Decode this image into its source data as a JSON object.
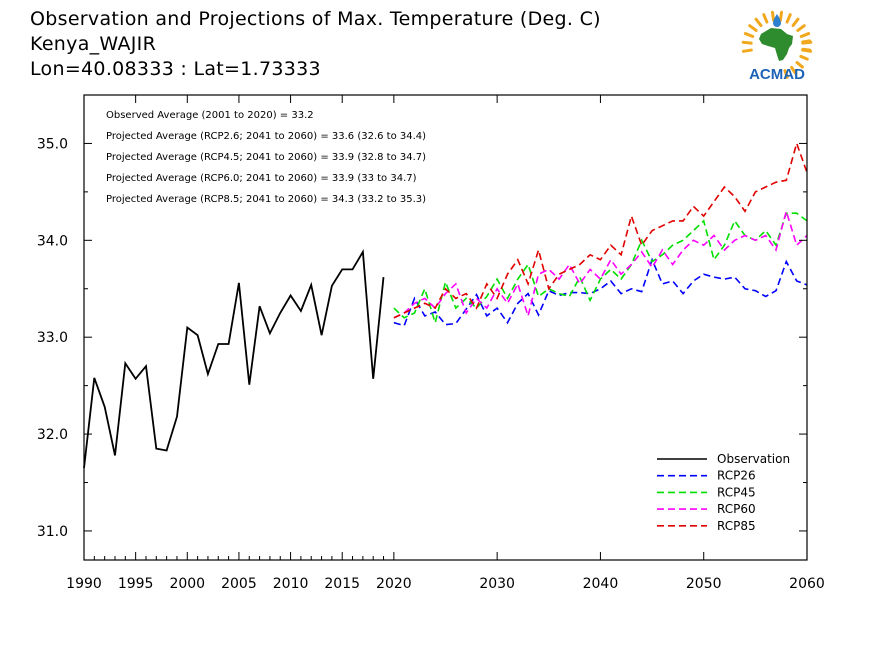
{
  "header": {
    "title": "Observation and Projections of Max. Temperature (Deg. C)",
    "station": "Kenya_WAJIR",
    "coords": "Lon=40.08333 : Lat=1.73333"
  },
  "logo": {
    "text": "ACMAD",
    "text_color": "#1c63b7",
    "africa_color": "#2e8b2e",
    "ray_color": "#f2a81d",
    "drop_color": "#2f7fd0"
  },
  "annotations": [
    "Observed Average (2001 to 2020) = 33.2",
    "Projected Average (RCP2.6; 2041 to 2060) = 33.6 (32.6 to 34.4)",
    "Projected Average (RCP4.5; 2041 to 2060) = 33.9 (32.8 to 34.7)",
    "Projected Average (RCP6.0; 2041 to 2060) = 33.9 (33 to 34.7)",
    "Projected Average (RCP8.5; 2041 to 2060) = 34.3 (33.2 to 35.3)"
  ],
  "chart_data": {
    "type": "line",
    "title": "Observation and Projections of Max. Temperature (Deg. C)",
    "xlabel": "",
    "ylabel": "",
    "xlim": [
      1990,
      2060
    ],
    "ylim": [
      30.7,
      35.5
    ],
    "x_ticks": [
      1990,
      1995,
      2000,
      2005,
      2010,
      2015,
      2020,
      2030,
      2040,
      2050,
      2060
    ],
    "y_ticks": [
      31.0,
      32.0,
      33.0,
      34.0,
      35.0
    ],
    "legend_position": "bottom-right",
    "grid": false,
    "series": [
      {
        "name": "Observation",
        "color": "#000000",
        "dashed": false,
        "x": [
          1990,
          1991,
          1992,
          1993,
          1994,
          1995,
          1996,
          1997,
          1998,
          1999,
          2000,
          2001,
          2002,
          2003,
          2004,
          2005,
          2006,
          2007,
          2008,
          2009,
          2010,
          2011,
          2012,
          2013,
          2014,
          2015,
          2016,
          2017,
          2018,
          2019
        ],
        "y": [
          31.65,
          32.58,
          32.28,
          31.78,
          32.73,
          32.57,
          32.7,
          31.85,
          31.83,
          32.18,
          33.1,
          33.02,
          32.62,
          32.93,
          32.93,
          33.56,
          32.51,
          33.32,
          33.04,
          33.25,
          33.43,
          33.27,
          33.54,
          33.02,
          33.53,
          33.7,
          33.7,
          33.88,
          32.57,
          33.62
        ]
      },
      {
        "name": "RCP26",
        "color": "#0000ff",
        "dashed": true,
        "x": [
          2020,
          2021,
          2022,
          2023,
          2024,
          2025,
          2026,
          2027,
          2028,
          2029,
          2030,
          2031,
          2032,
          2033,
          2034,
          2035,
          2036,
          2037,
          2038,
          2039,
          2040,
          2041,
          2042,
          2043,
          2044,
          2045,
          2046,
          2047,
          2048,
          2049,
          2050,
          2051,
          2052,
          2053,
          2054,
          2055,
          2056,
          2057,
          2058,
          2059,
          2060
        ],
        "y": [
          33.15,
          33.12,
          33.4,
          33.22,
          33.26,
          33.13,
          33.14,
          33.29,
          33.44,
          33.22,
          33.3,
          33.15,
          33.35,
          33.45,
          33.23,
          33.48,
          33.43,
          33.46,
          33.46,
          33.45,
          33.5,
          33.58,
          33.45,
          33.5,
          33.47,
          33.8,
          33.55,
          33.58,
          33.45,
          33.58,
          33.65,
          33.62,
          33.6,
          33.62,
          33.5,
          33.48,
          33.42,
          33.48,
          33.78,
          33.58,
          33.54
        ]
      },
      {
        "name": "RCP45",
        "color": "#00e000",
        "dashed": true,
        "x": [
          2020,
          2021,
          2022,
          2023,
          2024,
          2025,
          2026,
          2027,
          2028,
          2029,
          2030,
          2031,
          2032,
          2033,
          2034,
          2035,
          2036,
          2037,
          2038,
          2039,
          2040,
          2041,
          2042,
          2043,
          2044,
          2045,
          2046,
          2047,
          2048,
          2049,
          2050,
          2051,
          2052,
          2053,
          2054,
          2055,
          2056,
          2057,
          2058,
          2059,
          2060
        ],
        "y": [
          33.3,
          33.2,
          33.25,
          33.5,
          33.15,
          33.57,
          33.3,
          33.4,
          33.3,
          33.42,
          33.6,
          33.4,
          33.6,
          33.75,
          33.42,
          33.5,
          33.45,
          33.42,
          33.62,
          33.38,
          33.6,
          33.7,
          33.6,
          33.75,
          34.0,
          33.78,
          33.85,
          33.95,
          34.0,
          34.1,
          34.2,
          33.8,
          33.95,
          34.2,
          34.05,
          34.0,
          34.1,
          33.95,
          34.28,
          34.28,
          34.2
        ]
      },
      {
        "name": "RCP60",
        "color": "#ff00ff",
        "dashed": true,
        "x": [
          2020,
          2021,
          2022,
          2023,
          2024,
          2025,
          2026,
          2027,
          2028,
          2029,
          2030,
          2031,
          2032,
          2033,
          2034,
          2035,
          2036,
          2037,
          2038,
          2039,
          2040,
          2041,
          2042,
          2043,
          2044,
          2045,
          2046,
          2047,
          2048,
          2049,
          2050,
          2051,
          2052,
          2053,
          2054,
          2055,
          2056,
          2057,
          2058,
          2059,
          2060
        ],
        "y": [
          33.2,
          33.25,
          33.35,
          33.4,
          33.3,
          33.45,
          33.55,
          33.25,
          33.4,
          33.3,
          33.5,
          33.35,
          33.55,
          33.22,
          33.65,
          33.7,
          33.6,
          33.75,
          33.55,
          33.7,
          33.6,
          33.8,
          33.65,
          33.75,
          33.88,
          33.72,
          33.9,
          33.75,
          33.9,
          34.0,
          33.95,
          34.05,
          33.9,
          34.0,
          34.05,
          34.0,
          34.05,
          33.9,
          34.3,
          33.95,
          34.05
        ]
      },
      {
        "name": "RCP85",
        "color": "#e00000",
        "dashed": true,
        "x": [
          2020,
          2021,
          2022,
          2023,
          2024,
          2025,
          2026,
          2027,
          2028,
          2029,
          2030,
          2031,
          2032,
          2033,
          2034,
          2035,
          2036,
          2037,
          2038,
          2039,
          2040,
          2041,
          2042,
          2043,
          2044,
          2045,
          2046,
          2047,
          2048,
          2049,
          2050,
          2051,
          2052,
          2053,
          2054,
          2055,
          2056,
          2057,
          2058,
          2059,
          2060
        ],
        "y": [
          33.2,
          33.25,
          33.3,
          33.35,
          33.3,
          33.5,
          33.4,
          33.45,
          33.3,
          33.55,
          33.4,
          33.65,
          33.8,
          33.55,
          33.9,
          33.5,
          33.65,
          33.7,
          33.75,
          33.85,
          33.8,
          33.95,
          33.85,
          34.25,
          33.95,
          34.1,
          34.15,
          34.2,
          34.2,
          34.35,
          34.25,
          34.4,
          34.55,
          34.45,
          34.3,
          34.5,
          34.55,
          34.6,
          34.62,
          35.0,
          34.7
        ]
      }
    ]
  }
}
